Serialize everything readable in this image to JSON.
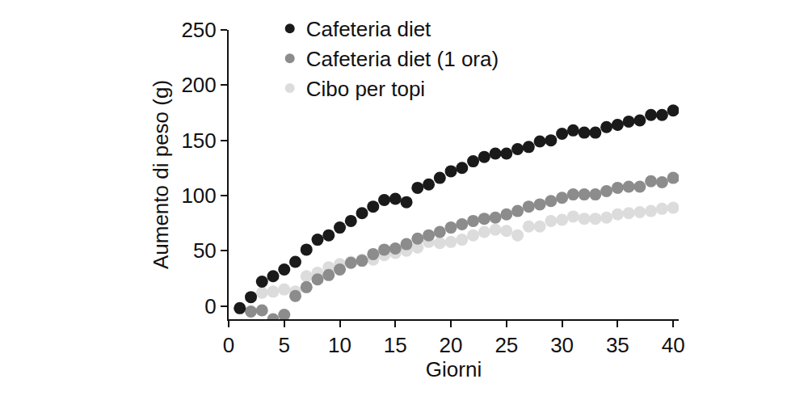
{
  "chart_data": {
    "type": "scatter",
    "x_label": "Giorni",
    "y_label": "Aumento di peso (g)",
    "x": [
      1,
      2,
      3,
      4,
      5,
      6,
      7,
      8,
      9,
      10,
      11,
      12,
      13,
      14,
      15,
      16,
      17,
      18,
      19,
      20,
      21,
      22,
      23,
      24,
      25,
      26,
      27,
      28,
      29,
      30,
      31,
      32,
      33,
      34,
      35,
      36,
      37,
      38,
      39,
      40
    ],
    "series": [
      {
        "name": "Cafeteria diet",
        "color": "#1a1a1a",
        "values": [
          -2,
          8,
          22,
          27,
          33,
          40,
          51,
          60,
          64,
          71,
          77,
          84,
          90,
          96,
          97,
          94,
          107,
          110,
          116,
          122,
          125,
          131,
          135,
          138,
          138,
          142,
          144,
          149,
          150,
          156,
          159,
          157,
          157,
          162,
          164,
          167,
          168,
          173,
          173,
          177
        ]
      },
      {
        "name": "Cafeteria diet (1 ora)",
        "color": "#8c8c8c",
        "values": [
          null,
          -5,
          -4,
          -12,
          -8,
          9,
          17,
          24,
          28,
          33,
          39,
          41,
          47,
          51,
          52,
          56,
          61,
          64,
          67,
          71,
          74,
          77,
          79,
          80,
          83,
          86,
          90,
          92,
          95,
          98,
          101,
          101,
          101,
          104,
          107,
          108,
          108,
          113,
          112,
          116
        ]
      },
      {
        "name": "Cibo per topi",
        "color": "#dcdcdc",
        "values": [
          null,
          null,
          12,
          13,
          15,
          13,
          27,
          30,
          35,
          38,
          40,
          42,
          42,
          46,
          48,
          50,
          53,
          58,
          57,
          58,
          60,
          64,
          67,
          69,
          68,
          64,
          72,
          72,
          77,
          78,
          81,
          79,
          79,
          80,
          83,
          84,
          85,
          86,
          88,
          89
        ]
      }
    ],
    "xlim": [
      0,
      40.5
    ],
    "xticks": [
      0,
      5,
      10,
      15,
      20,
      25,
      30,
      35,
      40
    ],
    "ylim": [
      -12,
      250
    ],
    "yticks": [
      0,
      50,
      100,
      150,
      200,
      250
    ],
    "grid": false,
    "legend": "top-left",
    "marker": "circle"
  }
}
